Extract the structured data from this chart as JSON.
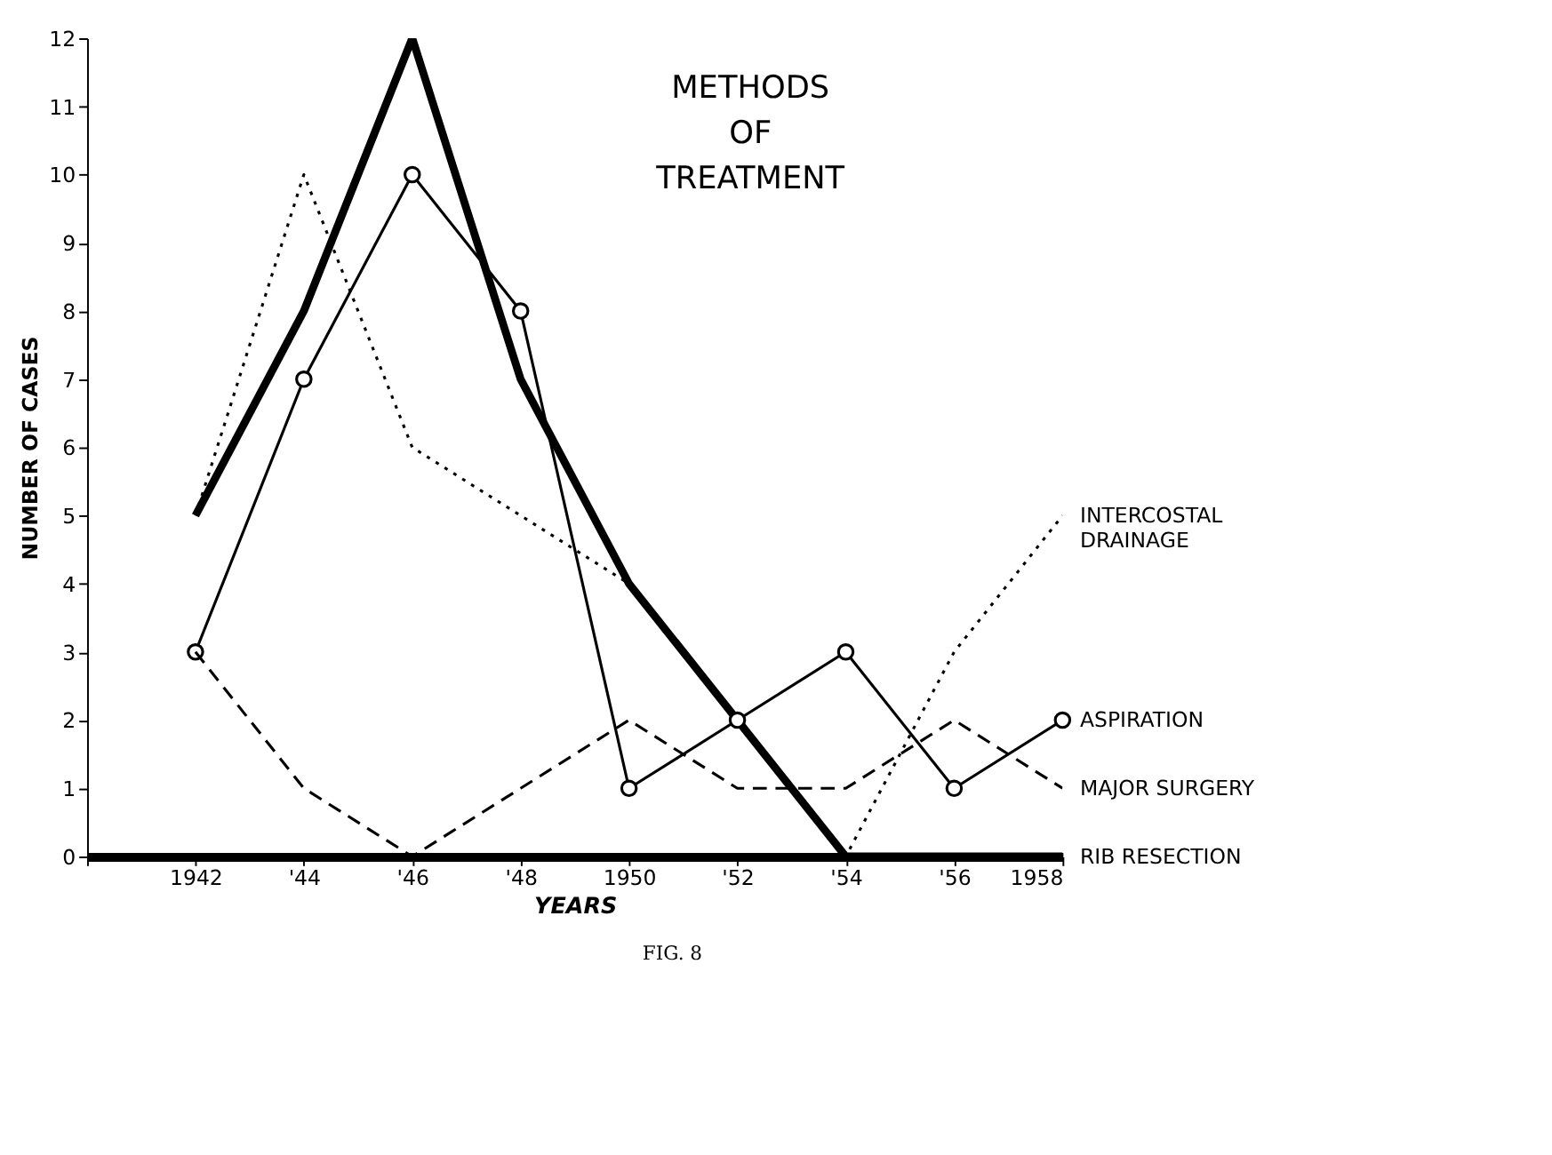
{
  "chart_data": {
    "type": "line",
    "title": "METHODS OF TREATMENT",
    "xlabel": "YEARS",
    "ylabel": "NUMBER OF CASES",
    "annotations": [
      "FIG. 8"
    ],
    "x": [
      1942,
      1944,
      1946,
      1948,
      1950,
      1952,
      1954,
      1956,
      1958
    ],
    "xlim": [
      1940,
      1958
    ],
    "xticks": [
      {
        "value": 1940,
        "label": null
      },
      1942,
      {
        "value": 1944,
        "label": "'44"
      },
      {
        "value": 1946,
        "label": "'46"
      },
      {
        "value": 1948,
        "label": "'48"
      },
      1950,
      {
        "value": 1952,
        "label": "'52"
      },
      {
        "value": 1954,
        "label": "'54"
      },
      {
        "value": 1956,
        "label": "'56"
      },
      1958
    ],
    "ylim": [
      0,
      12
    ],
    "yticks": [
      0,
      1,
      2,
      3,
      4,
      5,
      6,
      7,
      8,
      9,
      10,
      11,
      12
    ],
    "grid": false,
    "series": [
      {
        "name": "RIB RESECTION",
        "color": "#000000",
        "line_style": "solid",
        "marker": "none",
        "values": [
          5,
          8,
          12,
          7,
          4,
          2,
          0,
          0,
          0
        ]
      },
      {
        "name": "INTERCOSTAL\nDRAINAGE",
        "color": "#000000",
        "line_style": "dotted",
        "marker": "none",
        "values": [
          5,
          10,
          6,
          5,
          4,
          2,
          0,
          3,
          5
        ]
      },
      {
        "name": "ASPIRATION",
        "color": "#000000",
        "line_style": "solid",
        "marker": "circle",
        "values": [
          3,
          7,
          10,
          8,
          1,
          2,
          3,
          1,
          2
        ]
      },
      {
        "name": "MAJOR SURGERY",
        "color": "#000000",
        "line_style": "dashed",
        "marker": "none",
        "values": [
          3,
          1,
          0,
          1,
          2,
          1,
          1,
          2,
          1
        ]
      }
    ]
  }
}
